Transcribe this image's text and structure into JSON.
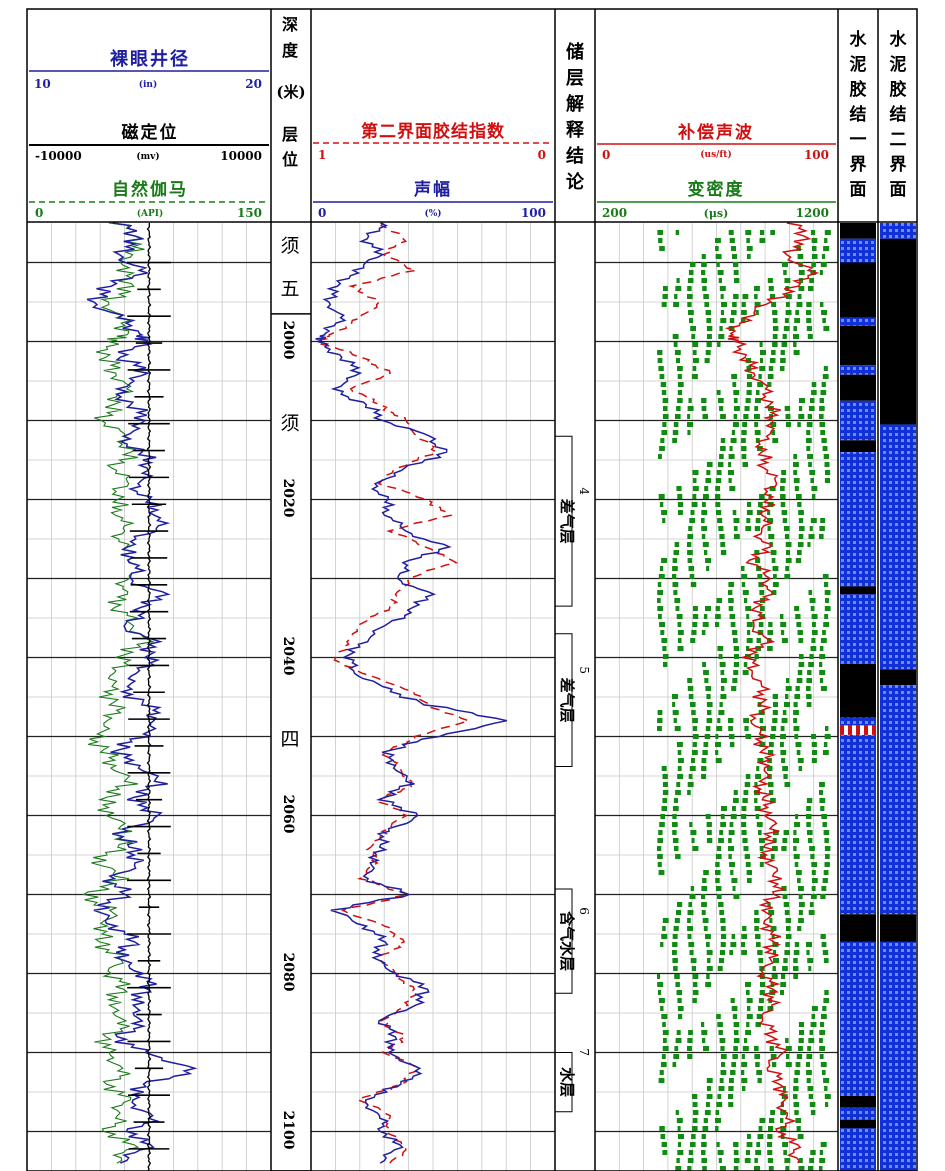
{
  "header": {
    "caliper": {
      "title": "裸眼井径",
      "min": "10",
      "unit": "(in)",
      "max": "20",
      "color": "#1f1fa0"
    },
    "ccl": {
      "title": "磁定位",
      "min": "-10000",
      "unit": "(mv)",
      "max": "10000",
      "color": "#000000"
    },
    "gr": {
      "title": "自然伽马",
      "min": "0",
      "unit": "(API)",
      "max": "150",
      "color": "#1a7a1a"
    },
    "depth": {
      "title_chars": [
        "深",
        "度",
        "(米)"
      ],
      "formation_chars": [
        "层",
        "位"
      ]
    },
    "bond_index": {
      "title": "第二界面胶结指数",
      "min": "1",
      "max": "0",
      "color": "#d01010"
    },
    "amplitude": {
      "title": "声幅",
      "min": "0",
      "unit": "(%)",
      "max": "100",
      "color": "#1f1fa0"
    },
    "interp": {
      "title_chars": [
        "储",
        "层",
        "解",
        "释",
        "结",
        "论"
      ]
    },
    "acoustic": {
      "title": "补偿声波",
      "min": "0",
      "unit": "(us/ft)",
      "max": "100",
      "color": "#d01010"
    },
    "vdl": {
      "title": "变密度",
      "min": "200",
      "unit": "(μs)",
      "max": "1200",
      "color": "#1a7a1a"
    },
    "bond1": {
      "title_chars": [
        "水",
        "泥",
        "胶",
        "结",
        "一",
        "界",
        "面"
      ]
    },
    "bond2": {
      "title_chars": [
        "水",
        "泥",
        "胶",
        "结",
        "二",
        "界",
        "面"
      ]
    }
  },
  "chart_data": {
    "type": "well-log",
    "depth_range": [
      1985,
      2105
    ],
    "depth_unit": "米",
    "depth_ticks": [
      {
        "depth": 2000,
        "label": "2000"
      },
      {
        "depth": 2020,
        "label": "2020"
      },
      {
        "depth": 2040,
        "label": "2040"
      },
      {
        "depth": 2060,
        "label": "2060"
      },
      {
        "depth": 2080,
        "label": "2080"
      },
      {
        "depth": 2100,
        "label": "2100"
      }
    ],
    "formations": [
      {
        "top": 1985.0,
        "bottom": 1996.5,
        "label": "须五"
      },
      {
        "top": 1996.5,
        "bottom": 2105.0,
        "label": "须四"
      }
    ],
    "formation_label_marks": [
      {
        "depth": 1987.5,
        "text": "须"
      },
      {
        "depth": 1993.0,
        "text": "五"
      },
      {
        "depth": 2010.0,
        "text": "须"
      },
      {
        "depth": 2050.0,
        "text": "四"
      }
    ],
    "interpretation_layers": [
      {
        "top": 2012.0,
        "bottom": 2033.5,
        "number": "4",
        "label": "差气层"
      },
      {
        "top": 2037.0,
        "bottom": 2053.8,
        "number": "5",
        "label": "差气层"
      },
      {
        "top": 2069.3,
        "bottom": 2082.5,
        "number": "6",
        "label": "含气水层"
      },
      {
        "top": 2090.0,
        "bottom": 2097.5,
        "number": "7",
        "label": "水层"
      }
    ],
    "amplitude_pct": {
      "depths": [
        1985,
        1987,
        1989,
        1991,
        1993,
        1995,
        1997,
        1999,
        2000,
        2002,
        2004,
        2006,
        2008,
        2010,
        2012,
        2014,
        2016,
        2018,
        2020,
        2022,
        2024,
        2026,
        2028,
        2030,
        2032,
        2034,
        2036,
        2038,
        2040,
        2042,
        2044,
        2046,
        2048,
        2050,
        2052,
        2054,
        2056,
        2058,
        2060,
        2062,
        2064,
        2066,
        2068,
        2070,
        2072,
        2074,
        2076,
        2078,
        2080,
        2082,
        2084,
        2086,
        2088,
        2090,
        2092,
        2094,
        2096,
        2098,
        2100,
        2102,
        2104
      ],
      "values": [
        30,
        22,
        28,
        18,
        10,
        6,
        12,
        5,
        2,
        12,
        20,
        8,
        22,
        30,
        48,
        55,
        40,
        25,
        30,
        32,
        38,
        55,
        40,
        35,
        48,
        42,
        30,
        20,
        15,
        18,
        30,
        48,
        82,
        50,
        30,
        35,
        40,
        28,
        45,
        30,
        28,
        25,
        22,
        40,
        8,
        22,
        30,
        25,
        35,
        48,
        42,
        28,
        35,
        30,
        45,
        38,
        20,
        28,
        30,
        35,
        28
      ]
    },
    "bond_index_2": {
      "depths": [
        1985,
        1987,
        1989,
        1991,
        1993,
        1995,
        1997,
        1999,
        2000,
        2002,
        2004,
        2006,
        2008,
        2010,
        2012,
        2014,
        2016,
        2018,
        2020,
        2022,
        2024,
        2026,
        2028,
        2030,
        2032,
        2034,
        2036,
        2038,
        2040,
        2042,
        2044,
        2046,
        2048,
        2050,
        2052,
        2054,
        2056,
        2058,
        2060,
        2062,
        2064,
        2066,
        2068,
        2070,
        2072,
        2074,
        2076,
        2078,
        2080,
        2082,
        2084,
        2086,
        2088,
        2090,
        2092,
        2094,
        2096,
        2098,
        2100,
        2102,
        2104
      ],
      "values": [
        0.72,
        0.62,
        0.7,
        0.58,
        0.84,
        0.72,
        0.8,
        0.92,
        0.98,
        0.8,
        0.68,
        0.84,
        0.72,
        0.62,
        0.56,
        0.48,
        0.66,
        0.72,
        0.52,
        0.44,
        0.68,
        0.52,
        0.42,
        0.6,
        0.64,
        0.7,
        0.82,
        0.84,
        0.92,
        0.8,
        0.6,
        0.52,
        0.36,
        0.56,
        0.7,
        0.65,
        0.58,
        0.72,
        0.62,
        0.7,
        0.76,
        0.74,
        0.8,
        0.6,
        0.88,
        0.7,
        0.62,
        0.72,
        0.66,
        0.58,
        0.6,
        0.72,
        0.62,
        0.7,
        0.56,
        0.64,
        0.8,
        0.68,
        0.7,
        0.6,
        0.68
      ]
    },
    "caliper_in": {
      "depths": [
        1985,
        1987,
        1989,
        1991,
        1993,
        1995,
        1997,
        1999,
        2000,
        2002,
        2004,
        2006,
        2008,
        2010,
        2012,
        2014,
        2016,
        2018,
        2020,
        2022,
        2024,
        2026,
        2028,
        2030,
        2032,
        2034,
        2036,
        2038,
        2040,
        2042,
        2044,
        2046,
        2048,
        2050,
        2052,
        2054,
        2056,
        2058,
        2060,
        2062,
        2064,
        2066,
        2068,
        2070,
        2072,
        2074,
        2076,
        2078,
        2080,
        2082,
        2084,
        2086,
        2088,
        2090,
        2092,
        2094,
        2096,
        2098,
        2100,
        2102,
        2104
      ],
      "values": [
        13.8,
        14.6,
        13.6,
        14.8,
        13.4,
        12.6,
        13.8,
        14.6,
        14.8,
        13.8,
        15.0,
        13.6,
        14.2,
        15.0,
        13.8,
        14.6,
        15.2,
        14.4,
        14.8,
        15.6,
        15.2,
        13.8,
        14.6,
        14.2,
        15.4,
        14.8,
        14.0,
        15.0,
        15.2,
        14.6,
        13.8,
        15.0,
        15.4,
        14.6,
        13.6,
        14.8,
        15.4,
        14.2,
        15.6,
        13.8,
        14.2,
        14.6,
        13.4,
        14.0,
        12.8,
        13.6,
        14.4,
        13.6,
        14.8,
        15.0,
        14.2,
        14.8,
        13.8,
        14.6,
        17.0,
        15.0,
        14.0,
        15.2,
        14.4,
        14.8,
        13.8
      ]
    },
    "gamma_ray_api": {
      "depths": [
        1985,
        1987,
        1989,
        1991,
        1993,
        1995,
        1997,
        1999,
        2000,
        2002,
        2004,
        2006,
        2008,
        2010,
        2012,
        2014,
        2016,
        2018,
        2020,
        2022,
        2024,
        2026,
        2028,
        2030,
        2032,
        2034,
        2036,
        2038,
        2040,
        2042,
        2044,
        2046,
        2048,
        2050,
        2052,
        2054,
        2056,
        2058,
        2060,
        2062,
        2064,
        2066,
        2068,
        2070,
        2072,
        2074,
        2076,
        2078,
        2080,
        2082,
        2084,
        2086,
        2088,
        2090,
        2092,
        2094,
        2096,
        2098,
        2100,
        2102,
        2104
      ],
      "values": [
        55,
        70,
        62,
        58,
        65,
        48,
        56,
        62,
        50,
        48,
        55,
        60,
        52,
        48,
        58,
        62,
        56,
        60,
        52,
        60,
        58,
        56,
        70,
        62,
        55,
        58,
        66,
        70,
        60,
        55,
        48,
        55,
        52,
        40,
        48,
        55,
        62,
        46,
        52,
        60,
        56,
        42,
        60,
        34,
        52,
        48,
        44,
        56,
        52,
        60,
        48,
        62,
        50,
        46,
        60,
        52,
        58,
        56,
        52,
        62,
        55
      ]
    },
    "acoustic_us_ft": {
      "depths": [
        1985,
        1987,
        1989,
        1991,
        1993,
        1995,
        1997,
        1999,
        2000,
        2002,
        2004,
        2006,
        2008,
        2010,
        2012,
        2014,
        2016,
        2018,
        2020,
        2022,
        2024,
        2026,
        2028,
        2030,
        2032,
        2034,
        2036,
        2038,
        2040,
        2042,
        2044,
        2046,
        2048,
        2050,
        2052,
        2054,
        2056,
        2058,
        2060,
        2062,
        2064,
        2066,
        2068,
        2070,
        2072,
        2074,
        2076,
        2078,
        2080,
        2082,
        2084,
        2086,
        2088,
        2090,
        2092,
        2094,
        2096,
        2098,
        2100,
        2102,
        2104
      ],
      "values": [
        82,
        88,
        78,
        90,
        84,
        72,
        62,
        56,
        58,
        62,
        66,
        70,
        72,
        75,
        70,
        68,
        72,
        74,
        70,
        72,
        68,
        70,
        66,
        72,
        70,
        68,
        66,
        70,
        64,
        66,
        68,
        70,
        66,
        68,
        70,
        72,
        68,
        70,
        72,
        74,
        70,
        72,
        76,
        74,
        70,
        72,
        74,
        72,
        70,
        74,
        72,
        70,
        74,
        76,
        72,
        78,
        76,
        80,
        78,
        82,
        84
      ]
    },
    "bond_quality_1": {
      "legend": {
        "good": "#1030d8",
        "poor": "#000000",
        "medium": "#d01010"
      },
      "intervals": [
        {
          "top": 1985.0,
          "bottom": 1987.0,
          "quality": "poor"
        },
        {
          "top": 1987.0,
          "bottom": 1990.0,
          "quality": "good"
        },
        {
          "top": 1990.0,
          "bottom": 1997.0,
          "quality": "poor"
        },
        {
          "top": 1997.0,
          "bottom": 1998.0,
          "quality": "good"
        },
        {
          "top": 1998.0,
          "bottom": 2003.0,
          "quality": "poor"
        },
        {
          "top": 2003.0,
          "bottom": 2004.2,
          "quality": "good"
        },
        {
          "top": 2004.2,
          "bottom": 2007.5,
          "quality": "poor"
        },
        {
          "top": 2007.5,
          "bottom": 2012.5,
          "quality": "good"
        },
        {
          "top": 2012.5,
          "bottom": 2014.0,
          "quality": "poor"
        },
        {
          "top": 2014.0,
          "bottom": 2031.0,
          "quality": "good"
        },
        {
          "top": 2031.0,
          "bottom": 2032.0,
          "quality": "poor"
        },
        {
          "top": 2032.0,
          "bottom": 2040.8,
          "quality": "good"
        },
        {
          "top": 2040.8,
          "bottom": 2047.6,
          "quality": "poor"
        },
        {
          "top": 2047.6,
          "bottom": 2048.6,
          "quality": "good"
        },
        {
          "top": 2048.6,
          "bottom": 2049.8,
          "quality": "medium"
        },
        {
          "top": 2049.8,
          "bottom": 2072.5,
          "quality": "good"
        },
        {
          "top": 2072.5,
          "bottom": 2076.0,
          "quality": "poor"
        },
        {
          "top": 2076.0,
          "bottom": 2095.5,
          "quality": "good"
        },
        {
          "top": 2095.5,
          "bottom": 2097.0,
          "quality": "poor"
        },
        {
          "top": 2097.0,
          "bottom": 2098.5,
          "quality": "good"
        },
        {
          "top": 2098.5,
          "bottom": 2099.6,
          "quality": "poor"
        },
        {
          "top": 2099.6,
          "bottom": 2105.0,
          "quality": "good"
        }
      ]
    },
    "bond_quality_2": {
      "intervals": [
        {
          "top": 1985.0,
          "bottom": 1987.0,
          "quality": "good"
        },
        {
          "top": 1987.0,
          "bottom": 2010.5,
          "quality": "poor"
        },
        {
          "top": 2010.5,
          "bottom": 2041.5,
          "quality": "good"
        },
        {
          "top": 2041.5,
          "bottom": 2043.5,
          "quality": "poor"
        },
        {
          "top": 2043.5,
          "bottom": 2072.5,
          "quality": "good"
        },
        {
          "top": 2072.5,
          "bottom": 2076.0,
          "quality": "poor"
        },
        {
          "top": 2076.0,
          "bottom": 2105.0,
          "quality": "good"
        }
      ]
    }
  }
}
